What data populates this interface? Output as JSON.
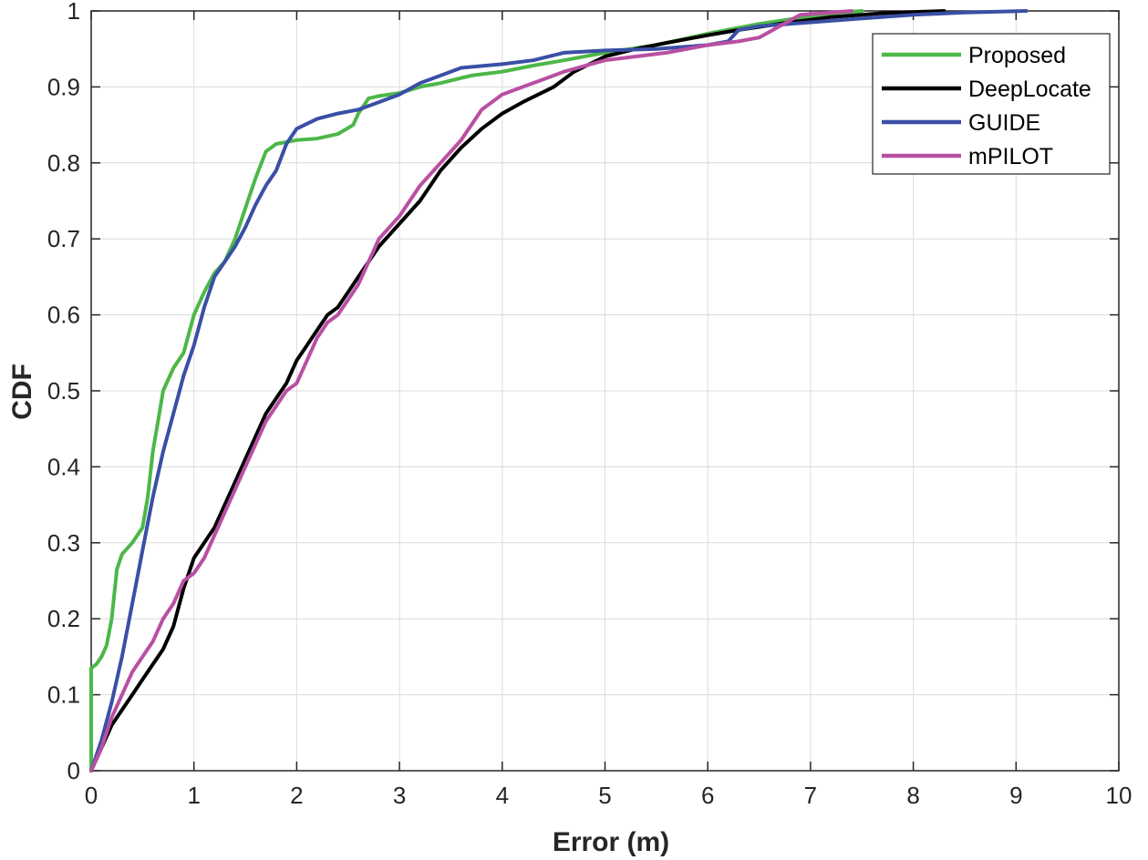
{
  "chart_data": {
    "type": "line",
    "xlabel": "Error (m)",
    "ylabel": "CDF",
    "xlim": [
      0,
      10
    ],
    "ylim": [
      0,
      1
    ],
    "x_ticks": [
      0,
      1,
      2,
      3,
      4,
      5,
      6,
      7,
      8,
      9,
      10
    ],
    "y_ticks": [
      0,
      0.1,
      0.2,
      0.3,
      0.4,
      0.5,
      0.6,
      0.7,
      0.8,
      0.9,
      1
    ],
    "grid": true,
    "legend_position": "top-right",
    "series": [
      {
        "name": "Proposed",
        "color": "#4db748",
        "points": [
          [
            0,
            0
          ],
          [
            0,
            0.135
          ],
          [
            0.05,
            0.14
          ],
          [
            0.1,
            0.15
          ],
          [
            0.15,
            0.165
          ],
          [
            0.2,
            0.2
          ],
          [
            0.25,
            0.265
          ],
          [
            0.3,
            0.285
          ],
          [
            0.4,
            0.3
          ],
          [
            0.5,
            0.32
          ],
          [
            0.55,
            0.36
          ],
          [
            0.6,
            0.42
          ],
          [
            0.65,
            0.46
          ],
          [
            0.7,
            0.5
          ],
          [
            0.8,
            0.53
          ],
          [
            0.9,
            0.55
          ],
          [
            1.0,
            0.6
          ],
          [
            1.1,
            0.63
          ],
          [
            1.2,
            0.655
          ],
          [
            1.3,
            0.67
          ],
          [
            1.4,
            0.7
          ],
          [
            1.5,
            0.74
          ],
          [
            1.6,
            0.78
          ],
          [
            1.7,
            0.815
          ],
          [
            1.8,
            0.825
          ],
          [
            2.0,
            0.83
          ],
          [
            2.2,
            0.832
          ],
          [
            2.4,
            0.838
          ],
          [
            2.55,
            0.85
          ],
          [
            2.6,
            0.865
          ],
          [
            2.7,
            0.885
          ],
          [
            2.8,
            0.888
          ],
          [
            3.0,
            0.892
          ],
          [
            3.2,
            0.9
          ],
          [
            3.4,
            0.905
          ],
          [
            3.7,
            0.915
          ],
          [
            4.0,
            0.92
          ],
          [
            4.3,
            0.928
          ],
          [
            4.6,
            0.935
          ],
          [
            5.0,
            0.945
          ],
          [
            5.5,
            0.955
          ],
          [
            6.0,
            0.97
          ],
          [
            6.5,
            0.983
          ],
          [
            7.0,
            0.993
          ],
          [
            7.3,
            0.998
          ],
          [
            7.5,
            1.0
          ]
        ]
      },
      {
        "name": "DeepLocate",
        "color": "#000000",
        "points": [
          [
            0,
            0
          ],
          [
            0.1,
            0.03
          ],
          [
            0.2,
            0.06
          ],
          [
            0.3,
            0.08
          ],
          [
            0.4,
            0.1
          ],
          [
            0.5,
            0.12
          ],
          [
            0.6,
            0.14
          ],
          [
            0.7,
            0.16
          ],
          [
            0.8,
            0.19
          ],
          [
            0.9,
            0.24
          ],
          [
            1.0,
            0.28
          ],
          [
            1.1,
            0.3
          ],
          [
            1.2,
            0.32
          ],
          [
            1.3,
            0.35
          ],
          [
            1.4,
            0.38
          ],
          [
            1.5,
            0.41
          ],
          [
            1.6,
            0.44
          ],
          [
            1.7,
            0.47
          ],
          [
            1.8,
            0.49
          ],
          [
            1.9,
            0.51
          ],
          [
            2.0,
            0.54
          ],
          [
            2.1,
            0.56
          ],
          [
            2.2,
            0.58
          ],
          [
            2.3,
            0.6
          ],
          [
            2.4,
            0.61
          ],
          [
            2.5,
            0.63
          ],
          [
            2.6,
            0.65
          ],
          [
            2.7,
            0.67
          ],
          [
            2.8,
            0.69
          ],
          [
            3.0,
            0.72
          ],
          [
            3.2,
            0.75
          ],
          [
            3.4,
            0.79
          ],
          [
            3.6,
            0.82
          ],
          [
            3.8,
            0.845
          ],
          [
            4.0,
            0.865
          ],
          [
            4.2,
            0.88
          ],
          [
            4.5,
            0.9
          ],
          [
            4.7,
            0.92
          ],
          [
            5.0,
            0.94
          ],
          [
            5.3,
            0.95
          ],
          [
            5.6,
            0.958
          ],
          [
            6.0,
            0.968
          ],
          [
            6.3,
            0.975
          ],
          [
            6.8,
            0.985
          ],
          [
            7.2,
            0.992
          ],
          [
            7.7,
            0.997
          ],
          [
            8.3,
            1.0
          ]
        ]
      },
      {
        "name": "GUIDE",
        "color": "#3a4fa5",
        "points": [
          [
            0,
            0
          ],
          [
            0.1,
            0.04
          ],
          [
            0.2,
            0.09
          ],
          [
            0.3,
            0.15
          ],
          [
            0.4,
            0.22
          ],
          [
            0.5,
            0.29
          ],
          [
            0.6,
            0.36
          ],
          [
            0.7,
            0.42
          ],
          [
            0.8,
            0.47
          ],
          [
            0.9,
            0.52
          ],
          [
            1.0,
            0.56
          ],
          [
            1.1,
            0.61
          ],
          [
            1.2,
            0.65
          ],
          [
            1.3,
            0.67
          ],
          [
            1.4,
            0.69
          ],
          [
            1.5,
            0.715
          ],
          [
            1.6,
            0.745
          ],
          [
            1.7,
            0.77
          ],
          [
            1.8,
            0.79
          ],
          [
            1.9,
            0.825
          ],
          [
            2.0,
            0.845
          ],
          [
            2.2,
            0.858
          ],
          [
            2.4,
            0.865
          ],
          [
            2.6,
            0.87
          ],
          [
            2.8,
            0.88
          ],
          [
            3.0,
            0.89
          ],
          [
            3.2,
            0.905
          ],
          [
            3.4,
            0.915
          ],
          [
            3.6,
            0.925
          ],
          [
            4.0,
            0.93
          ],
          [
            4.3,
            0.935
          ],
          [
            4.6,
            0.945
          ],
          [
            5.0,
            0.948
          ],
          [
            5.5,
            0.95
          ],
          [
            6.0,
            0.955
          ],
          [
            6.2,
            0.96
          ],
          [
            6.3,
            0.975
          ],
          [
            6.5,
            0.98
          ],
          [
            7.0,
            0.985
          ],
          [
            7.5,
            0.99
          ],
          [
            8.0,
            0.995
          ],
          [
            8.5,
            0.998
          ],
          [
            9.1,
            1.0
          ]
        ]
      },
      {
        "name": "mPILOT",
        "color": "#b94fa3",
        "points": [
          [
            0,
            0
          ],
          [
            0.1,
            0.03
          ],
          [
            0.2,
            0.07
          ],
          [
            0.3,
            0.1
          ],
          [
            0.4,
            0.13
          ],
          [
            0.5,
            0.15
          ],
          [
            0.6,
            0.17
          ],
          [
            0.7,
            0.2
          ],
          [
            0.8,
            0.22
          ],
          [
            0.9,
            0.25
          ],
          [
            1.0,
            0.26
          ],
          [
            1.1,
            0.28
          ],
          [
            1.2,
            0.31
          ],
          [
            1.3,
            0.34
          ],
          [
            1.4,
            0.37
          ],
          [
            1.5,
            0.4
          ],
          [
            1.6,
            0.43
          ],
          [
            1.7,
            0.46
          ],
          [
            1.8,
            0.48
          ],
          [
            1.9,
            0.5
          ],
          [
            2.0,
            0.51
          ],
          [
            2.1,
            0.54
          ],
          [
            2.2,
            0.57
          ],
          [
            2.3,
            0.59
          ],
          [
            2.4,
            0.6
          ],
          [
            2.5,
            0.62
          ],
          [
            2.6,
            0.64
          ],
          [
            2.7,
            0.67
          ],
          [
            2.8,
            0.7
          ],
          [
            3.0,
            0.73
          ],
          [
            3.2,
            0.77
          ],
          [
            3.4,
            0.8
          ],
          [
            3.6,
            0.83
          ],
          [
            3.8,
            0.87
          ],
          [
            4.0,
            0.89
          ],
          [
            4.2,
            0.9
          ],
          [
            4.4,
            0.91
          ],
          [
            4.6,
            0.92
          ],
          [
            5.0,
            0.935
          ],
          [
            5.3,
            0.94
          ],
          [
            5.6,
            0.945
          ],
          [
            6.0,
            0.955
          ],
          [
            6.3,
            0.96
          ],
          [
            6.5,
            0.965
          ],
          [
            6.7,
            0.98
          ],
          [
            6.9,
            0.995
          ],
          [
            7.2,
            0.998
          ],
          [
            7.4,
            1.0
          ]
        ]
      }
    ]
  }
}
